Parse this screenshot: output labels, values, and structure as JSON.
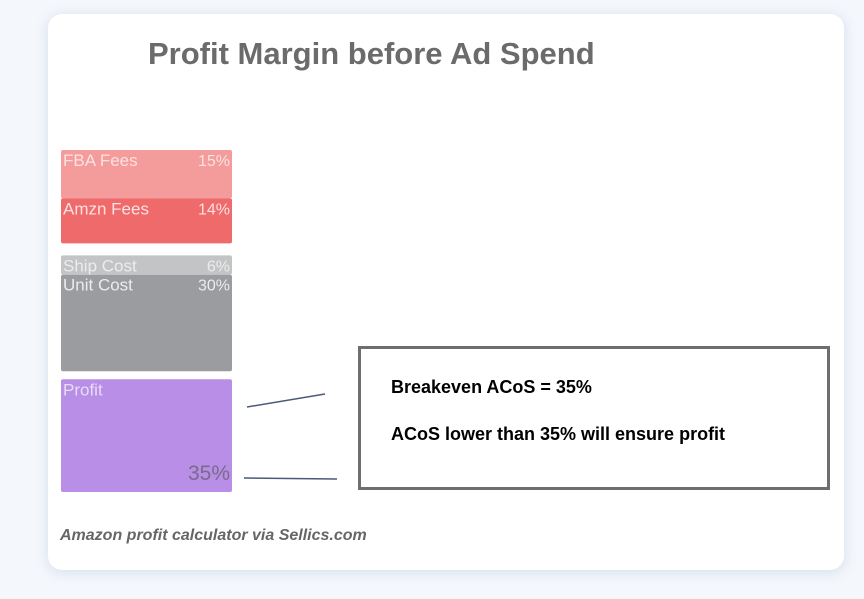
{
  "chart_data": {
    "type": "stacked-block",
    "title": "Profit Margin before Ad Spend",
    "series": [
      {
        "name": "FBA Fees",
        "color": "#f49c9c",
        "values": [
          15
        ],
        "value_labels": [
          "15%"
        ]
      },
      {
        "name": "Amzn Fees",
        "color": "#ef6a6a",
        "values": [
          14
        ],
        "value_labels": [
          "14%"
        ]
      },
      {
        "name": "Ship Cost",
        "color": "#c3c4c6",
        "values": [
          6
        ],
        "value_labels": [
          "6%"
        ]
      },
      {
        "name": "Unit Cost",
        "color": "#9a9c9f",
        "values": [
          30
        ],
        "value_labels": [
          "30%"
        ]
      },
      {
        "name": "Profit",
        "color": "#b98ee6",
        "values": [
          35
        ],
        "value_labels": [
          "35%"
        ]
      }
    ],
    "annotations": [
      "Breakeven ACoS = 35%",
      "ACoS lower than 35% will ensure profit"
    ],
    "source": "Amazon profit calculator via Sellics.com"
  }
}
